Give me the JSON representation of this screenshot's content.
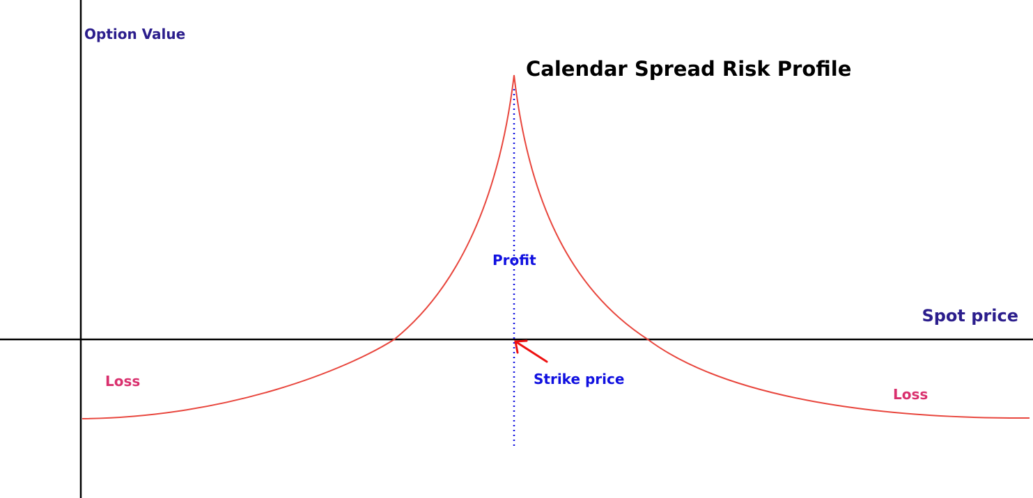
{
  "title": "Calendar Spread Risk Profile",
  "labels": {
    "y_axis": "Option Value",
    "x_axis": "Spot price",
    "profit": "Profit",
    "strike": "Strike price",
    "loss_left": "Loss",
    "loss_right": "Loss"
  },
  "colors": {
    "axis": "#000000",
    "curve": "#e8453c",
    "strike_line": "#1010e0",
    "axis_label": "#2b1d8c",
    "profit_label": "#1010e0",
    "loss_label": "#d9306e",
    "arrow": "#ee1111",
    "title": "#000000"
  }
}
